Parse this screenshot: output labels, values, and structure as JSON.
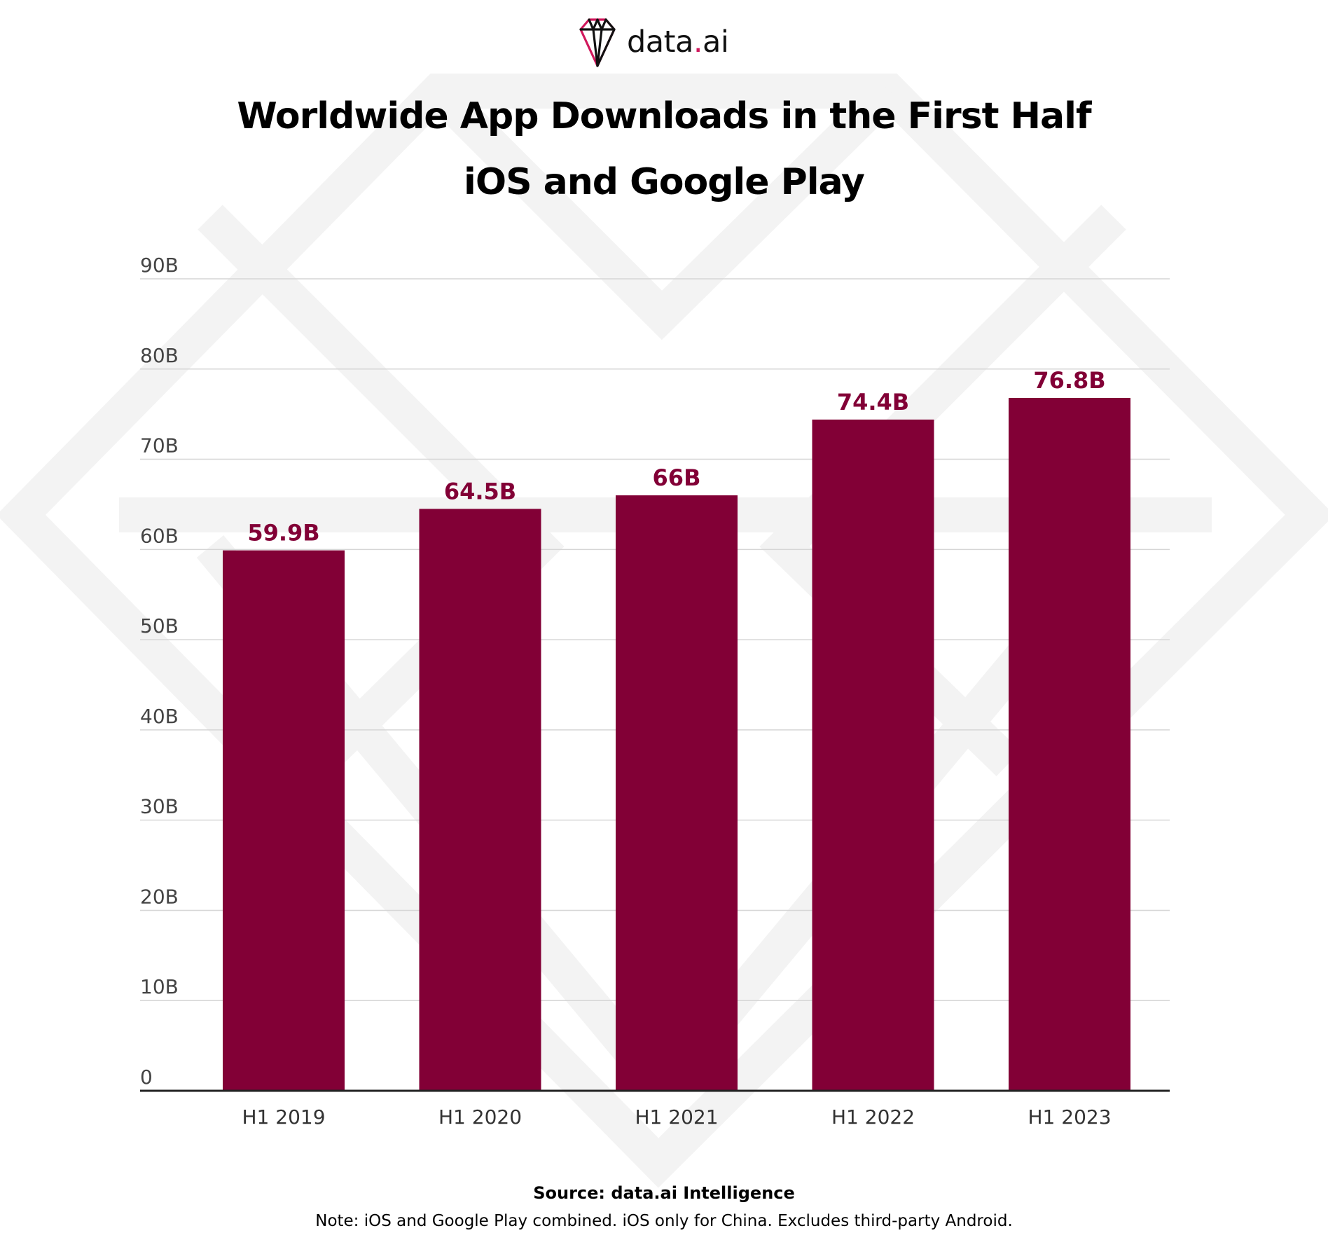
{
  "logo": {
    "name": "data",
    "dot": ".",
    "suffix": "ai",
    "accent_color": "#d0185c"
  },
  "title": {
    "line1": "Worldwide App Downloads in the First Half",
    "line2": "iOS and Google Play"
  },
  "chart_data": {
    "type": "bar",
    "categories": [
      "H1 2019",
      "H1 2020",
      "H1 2021",
      "H1 2022",
      "H1 2023"
    ],
    "values": [
      59.9,
      64.5,
      66,
      74.4,
      76.8
    ],
    "data_labels": [
      "59.9B",
      "64.5B",
      "66B",
      "74.4B",
      "76.8B"
    ],
    "unit": "B",
    "ylim": [
      0,
      90
    ],
    "yticks": [
      0,
      10,
      20,
      30,
      40,
      50,
      60,
      70,
      80,
      90
    ],
    "ytick_labels": [
      "0",
      "10B",
      "20B",
      "30B",
      "40B",
      "50B",
      "60B",
      "70B",
      "80B",
      "90B"
    ],
    "grid": true,
    "legend": "none",
    "bar_color": "#820036",
    "label_color": "#820036"
  },
  "footer": {
    "source": "Source: data.ai Intelligence",
    "note": "Note: iOS and Google Play combined. iOS only for China. Excludes third-party Android."
  }
}
